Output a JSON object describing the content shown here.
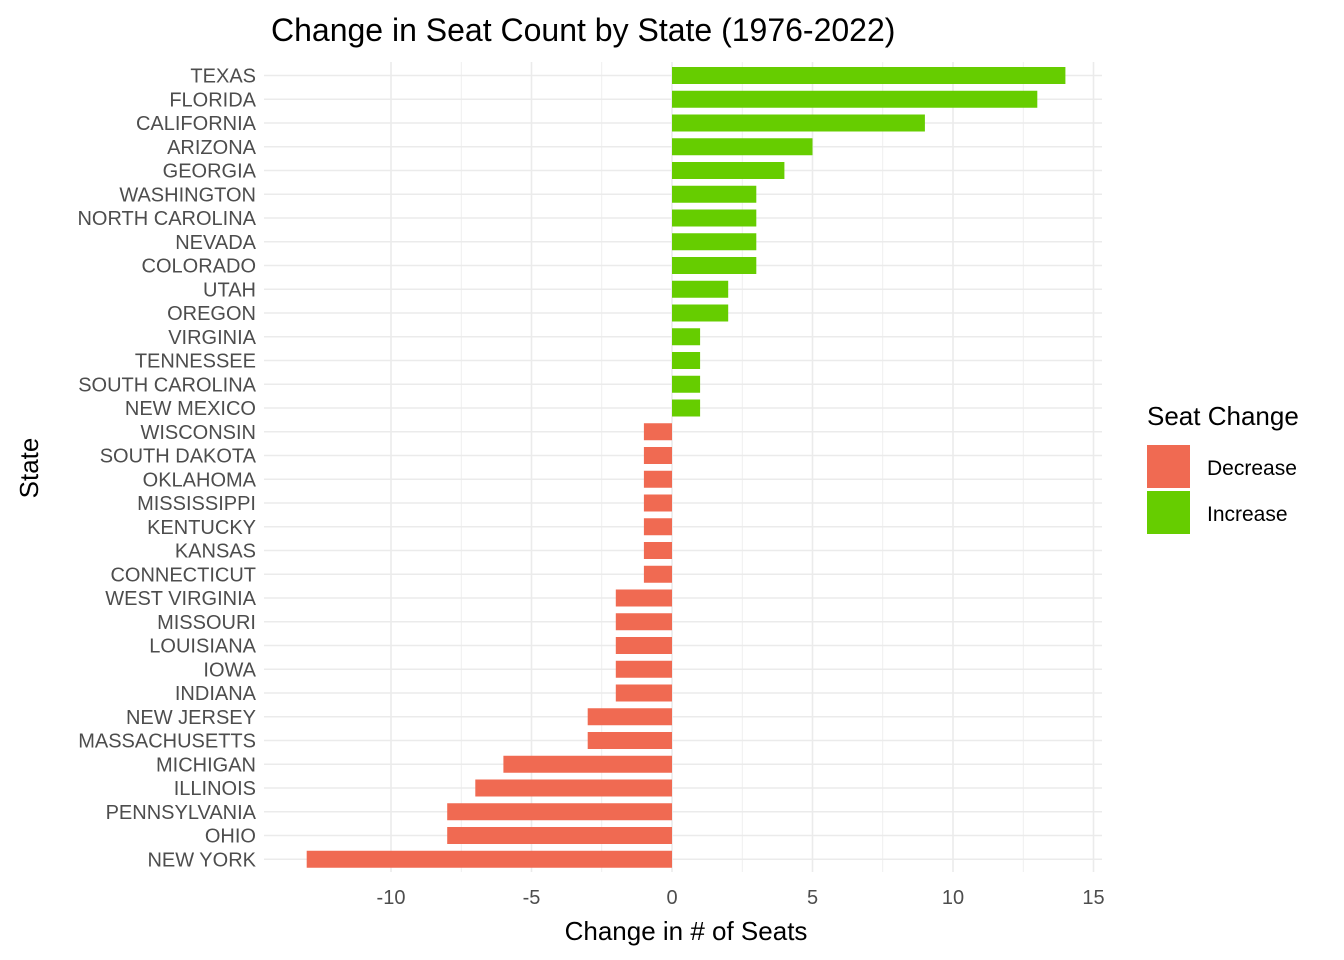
{
  "chart_data": {
    "type": "bar",
    "orientation": "horizontal",
    "title": "Change in Seat Count by State (1976-2022)",
    "xlabel": "Change in # of Seats",
    "ylabel": "State",
    "xlim": [
      -13.6,
      15.3
    ],
    "xticks": [
      -10,
      -5,
      0,
      5,
      10,
      15
    ],
    "xtick_labels": [
      "-10",
      "-5",
      "0",
      "5",
      "10",
      "15"
    ],
    "grid": true,
    "categories": [
      "TEXAS",
      "FLORIDA",
      "CALIFORNIA",
      "ARIZONA",
      "GEORGIA",
      "WASHINGTON",
      "NORTH CAROLINA",
      "NEVADA",
      "COLORADO",
      "UTAH",
      "OREGON",
      "VIRGINIA",
      "TENNESSEE",
      "SOUTH CAROLINA",
      "NEW MEXICO",
      "WISCONSIN",
      "SOUTH DAKOTA",
      "OKLAHOMA",
      "MISSISSIPPI",
      "KENTUCKY",
      "KANSAS",
      "CONNECTICUT",
      "WEST VIRGINIA",
      "MISSOURI",
      "LOUISIANA",
      "IOWA",
      "INDIANA",
      "NEW JERSEY",
      "MASSACHUSETTS",
      "MICHIGAN",
      "ILLINOIS",
      "PENNSYLVANIA",
      "OHIO",
      "NEW YORK"
    ],
    "values": [
      14,
      13,
      9,
      5,
      4,
      3,
      3,
      3,
      3,
      2,
      2,
      1,
      1,
      1,
      1,
      -1,
      -1,
      -1,
      -1,
      -1,
      -1,
      -1,
      -2,
      -2,
      -2,
      -2,
      -2,
      -3,
      -3,
      -6,
      -7,
      -8,
      -8,
      -13
    ],
    "legend": {
      "title": "Seat Change",
      "placement": "right",
      "entries": [
        {
          "label": "Decrease",
          "color": "#F06A52"
        },
        {
          "label": "Increase",
          "color": "#66CD00"
        }
      ]
    },
    "colors": {
      "increase": "#66CD00",
      "decrease": "#F06A52",
      "grid": "#EBEBEB"
    }
  }
}
